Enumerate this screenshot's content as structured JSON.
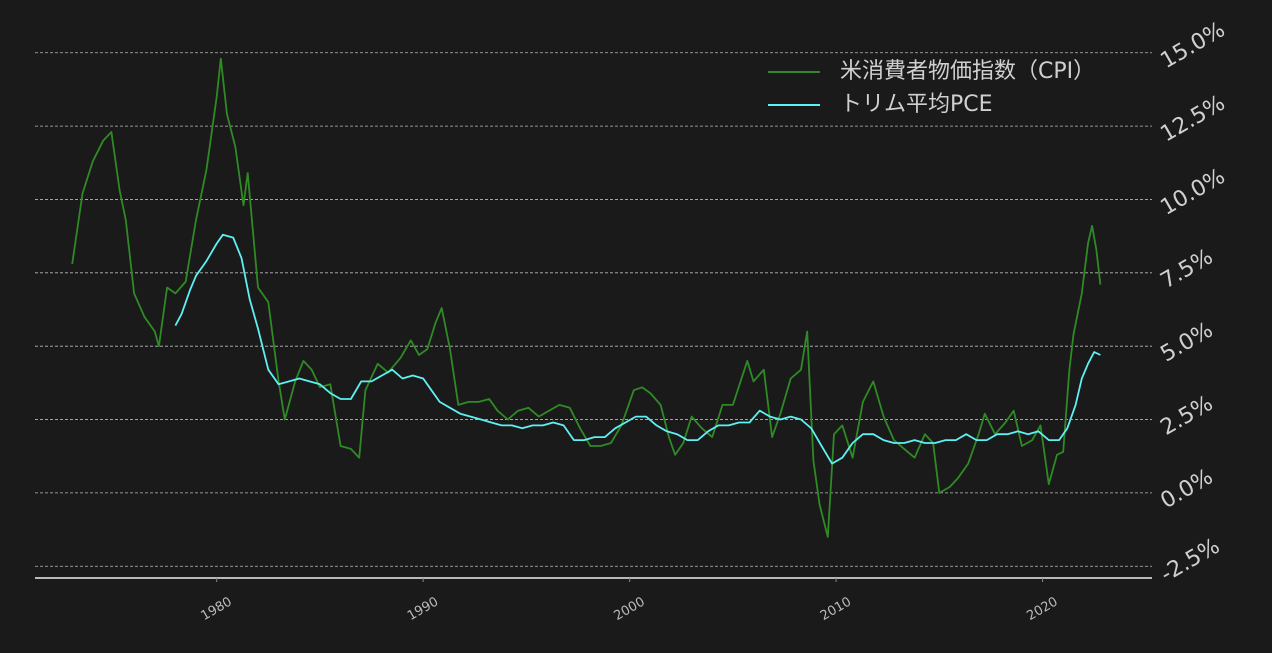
{
  "chart_data": {
    "type": "line",
    "series": [
      {
        "name": "米消費者物価指数（CPI）",
        "color": "#2f8a25",
        "x": [
          1973.0,
          1973.5,
          1974.0,
          1974.5,
          1974.9,
          1975.3,
          1975.6,
          1976.0,
          1976.5,
          1977.0,
          1977.2,
          1977.6,
          1978.0,
          1978.5,
          1979.0,
          1979.5,
          1980.0,
          1980.2,
          1980.5,
          1980.9,
          1981.3,
          1981.5,
          1982.0,
          1982.5,
          1983.0,
          1983.3,
          1983.8,
          1984.2,
          1984.6,
          1985.0,
          1985.5,
          1986.0,
          1986.5,
          1986.9,
          1987.2,
          1987.8,
          1988.3,
          1988.9,
          1989.4,
          1989.8,
          1990.2,
          1990.6,
          1990.9,
          1991.3,
          1991.7,
          1992.2,
          1992.7,
          1993.2,
          1993.6,
          1994.1,
          1994.6,
          1995.1,
          1995.6,
          1996.1,
          1996.6,
          1997.1,
          1997.6,
          1998.1,
          1998.6,
          1999.1,
          1999.6,
          2000.2,
          2000.6,
          2001.0,
          2001.5,
          2001.9,
          2002.2,
          2002.6,
          2003.0,
          2003.5,
          2004.0,
          2004.5,
          2005.0,
          2005.7,
          2006.0,
          2006.5,
          2006.9,
          2007.3,
          2007.8,
          2008.3,
          2008.6,
          2008.9,
          2009.2,
          2009.6,
          2009.9,
          2010.3,
          2010.8,
          2011.3,
          2011.8,
          2012.3,
          2012.8,
          2013.3,
          2013.8,
          2014.3,
          2014.7,
          2015.0,
          2015.5,
          2015.9,
          2016.4,
          2016.9,
          2017.2,
          2017.7,
          2018.2,
          2018.6,
          2019.0,
          2019.5,
          2019.9,
          2020.3,
          2020.7,
          2021.0,
          2021.3,
          2021.5,
          2021.9,
          2022.2,
          2022.4,
          2022.6,
          2022.8
        ],
        "values": [
          7.8,
          10.2,
          11.3,
          12.0,
          12.3,
          10.3,
          9.3,
          6.8,
          6.0,
          5.5,
          5.0,
          7.0,
          6.8,
          7.2,
          9.3,
          11.0,
          13.5,
          14.8,
          12.9,
          11.8,
          9.8,
          10.9,
          7.0,
          6.5,
          3.8,
          2.5,
          3.8,
          4.5,
          4.2,
          3.6,
          3.7,
          1.6,
          1.5,
          1.2,
          3.5,
          4.4,
          4.1,
          4.6,
          5.2,
          4.7,
          4.9,
          5.8,
          6.3,
          4.9,
          3.0,
          3.1,
          3.1,
          3.2,
          2.8,
          2.5,
          2.8,
          2.9,
          2.6,
          2.8,
          3.0,
          2.9,
          2.2,
          1.6,
          1.6,
          1.7,
          2.3,
          3.5,
          3.6,
          3.4,
          3.0,
          1.9,
          1.3,
          1.7,
          2.6,
          2.2,
          1.9,
          3.0,
          3.0,
          4.5,
          3.8,
          4.2,
          1.9,
          2.7,
          3.9,
          4.2,
          5.5,
          1.1,
          -0.4,
          -1.5,
          2.0,
          2.3,
          1.2,
          3.1,
          3.8,
          2.6,
          1.8,
          1.5,
          1.2,
          2.0,
          1.7,
          0.0,
          0.2,
          0.5,
          1.0,
          2.0,
          2.7,
          2.0,
          2.4,
          2.8,
          1.6,
          1.8,
          2.3,
          0.3,
          1.3,
          1.4,
          4.2,
          5.4,
          6.8,
          8.5,
          9.1,
          8.3,
          7.1
        ]
      },
      {
        "name": "トリム平均PCE",
        "color": "#5ef0f2",
        "x": [
          1978.0,
          1978.3,
          1978.7,
          1979.0,
          1979.5,
          1980.0,
          1980.3,
          1980.8,
          1981.2,
          1981.6,
          1982.0,
          1982.5,
          1983.0,
          1983.5,
          1984.0,
          1984.5,
          1985.0,
          1985.5,
          1986.0,
          1986.5,
          1987.0,
          1987.5,
          1988.0,
          1988.5,
          1989.0,
          1989.5,
          1990.0,
          1990.4,
          1990.8,
          1991.3,
          1991.8,
          1992.3,
          1992.8,
          1993.3,
          1993.8,
          1994.3,
          1994.8,
          1995.3,
          1995.8,
          1996.3,
          1996.8,
          1997.3,
          1997.8,
          1998.3,
          1998.8,
          1999.3,
          1999.8,
          2000.3,
          2000.8,
          2001.3,
          2001.8,
          2002.3,
          2002.8,
          2003.3,
          2003.8,
          2004.3,
          2004.8,
          2005.3,
          2005.8,
          2006.3,
          2006.8,
          2007.3,
          2007.8,
          2008.3,
          2008.8,
          2009.3,
          2009.8,
          2010.3,
          2010.8,
          2011.3,
          2011.8,
          2012.3,
          2012.8,
          2013.3,
          2013.8,
          2014.3,
          2014.8,
          2015.3,
          2015.8,
          2016.3,
          2016.8,
          2017.3,
          2017.8,
          2018.3,
          2018.8,
          2019.3,
          2019.8,
          2020.3,
          2020.8,
          2021.2,
          2021.6,
          2021.9,
          2022.2,
          2022.5,
          2022.8
        ],
        "values": [
          5.7,
          6.1,
          6.9,
          7.4,
          7.9,
          8.5,
          8.8,
          8.7,
          8.0,
          6.6,
          5.6,
          4.2,
          3.7,
          3.8,
          3.9,
          3.8,
          3.7,
          3.4,
          3.2,
          3.2,
          3.8,
          3.8,
          4.0,
          4.2,
          3.9,
          4.0,
          3.9,
          3.5,
          3.1,
          2.9,
          2.7,
          2.6,
          2.5,
          2.4,
          2.3,
          2.3,
          2.2,
          2.3,
          2.3,
          2.4,
          2.3,
          1.8,
          1.8,
          1.9,
          1.9,
          2.2,
          2.4,
          2.6,
          2.6,
          2.3,
          2.1,
          2.0,
          1.8,
          1.8,
          2.1,
          2.3,
          2.3,
          2.4,
          2.4,
          2.8,
          2.6,
          2.5,
          2.6,
          2.5,
          2.2,
          1.6,
          1.0,
          1.2,
          1.7,
          2.0,
          2.0,
          1.8,
          1.7,
          1.7,
          1.8,
          1.7,
          1.7,
          1.8,
          1.8,
          2.0,
          1.8,
          1.8,
          2.0,
          2.0,
          2.1,
          2.0,
          2.1,
          1.8,
          1.8,
          2.2,
          3.0,
          3.9,
          4.4,
          4.8,
          4.7
        ]
      }
    ],
    "xlim": [
      1971.2,
      2025.3
    ],
    "xticks": [
      1980,
      1990,
      2000,
      2010,
      2020
    ],
    "ylim": [
      -2.9,
      15.4
    ],
    "yticks": [
      {
        "value": -2.5,
        "label": "-2.5%"
      },
      {
        "value": 0,
        "label": "0.0%"
      },
      {
        "value": 2.5,
        "label": "2.5%"
      },
      {
        "value": 5,
        "label": "5.0%"
      },
      {
        "value": 7.5,
        "label": "7.5%"
      },
      {
        "value": 10,
        "label": "10.0%"
      },
      {
        "value": 12.5,
        "label": "12.5%"
      },
      {
        "value": 15,
        "label": "15.0%"
      }
    ],
    "grid": true,
    "legend": "upper right"
  }
}
